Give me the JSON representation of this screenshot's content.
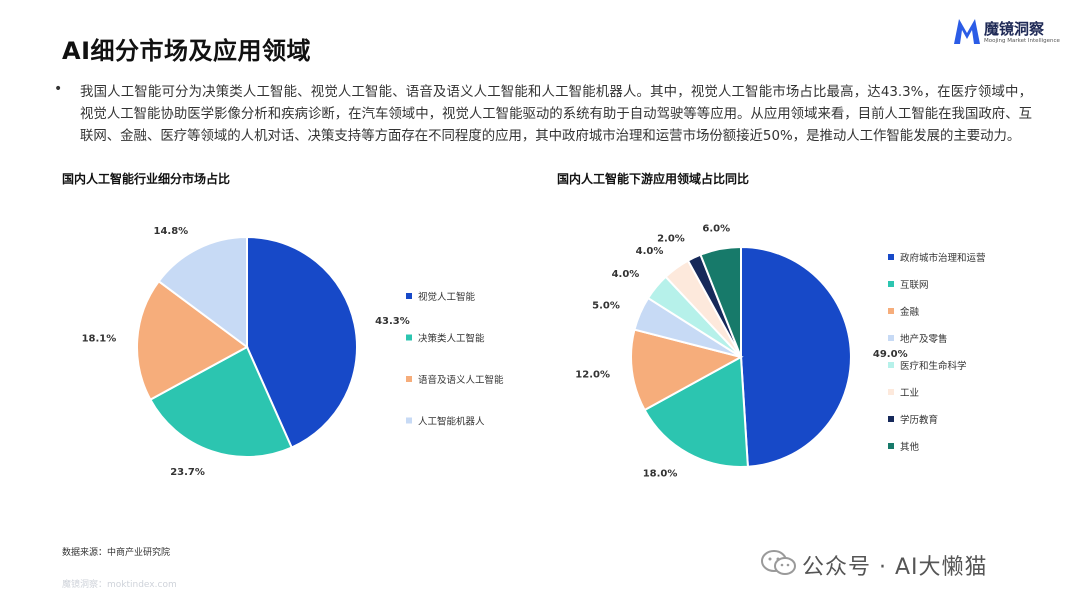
{
  "page": {
    "title": "AI细分市场及应用领域",
    "bullet_text": "我国人工智能可分为决策类人工智能、视觉人工智能、语音及语义人工智能和人工智能机器人。其中，视觉人工智能市场占比最高，达43.3%，在医疗领域中，视觉人工智能协助医学影像分析和疾病诊断，在汽车领域中，视觉人工智能驱动的系统有助于自动驾驶等等应用。从应用领域来看，目前人工智能在我国政府、互联网、金融、医疗等领域的人机对话、决策支持等方面存在不同程度的应用，其中政府城市治理和运营市场份额接近50%，是推动人工作智能发展的主要动力。",
    "source": "数据来源：中商产业研究院",
    "footer_url": "魔镜洞察：moktindex.com",
    "watermark": "公众号 · AI大懒猫"
  },
  "logo": {
    "name": "魔镜洞察",
    "sub": "Moojing Market Intelligence",
    "color": "#2b5ce6"
  },
  "chart_data": [
    {
      "type": "pie",
      "title": "国内人工智能行业细分市场占比",
      "categories": [
        "视觉人工智能",
        "决策类人工智能",
        "语音及语义人工智能",
        "人工智能机器人"
      ],
      "values": [
        43.3,
        23.7,
        18.1,
        14.8
      ],
      "value_labels": [
        "43.3%",
        "23.7%",
        "18.1%",
        "14.8%"
      ],
      "colors": [
        "#1749c8",
        "#2cc5b0",
        "#f6ad7b",
        "#c7daf5"
      ],
      "legend_position": "right"
    },
    {
      "type": "pie",
      "title": "国内人工智能下游应用领域占比同比",
      "categories": [
        "政府城市治理和运营",
        "互联网",
        "金融",
        "地产及零售",
        "医疗和生命科学",
        "工业",
        "学历教育",
        "其他"
      ],
      "values": [
        49.0,
        18.0,
        12.0,
        5.0,
        4.0,
        4.0,
        2.0,
        6.0
      ],
      "value_labels": [
        "49.0%",
        "18.0%",
        "12.0%",
        "5.0%",
        "4.0%",
        "4.0%",
        "2.0%",
        "6.0%"
      ],
      "colors": [
        "#1749c8",
        "#2cc5b0",
        "#f6ad7b",
        "#c7daf5",
        "#b6f1ea",
        "#fde9dc",
        "#16295a",
        "#177a6a"
      ],
      "legend_position": "right"
    }
  ]
}
